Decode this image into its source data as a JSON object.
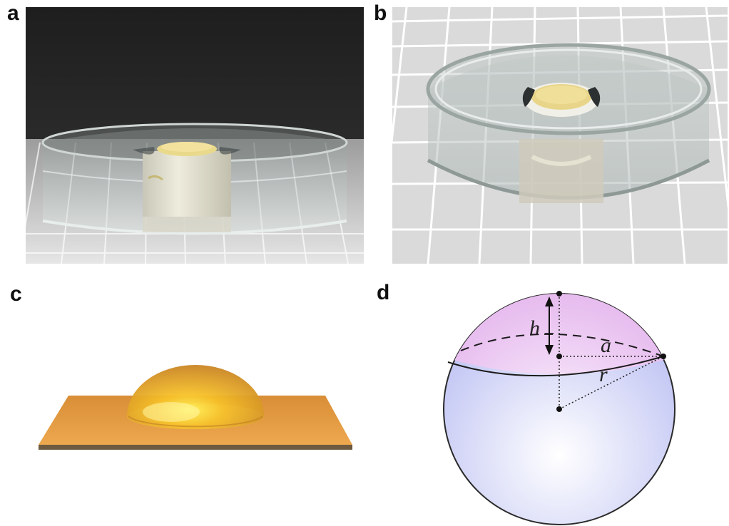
{
  "figure": {
    "panels": [
      {
        "id": "a",
        "label": "a"
      },
      {
        "id": "b",
        "label": "b"
      },
      {
        "id": "c",
        "label": "c"
      },
      {
        "id": "d",
        "label": "d"
      }
    ],
    "diagram_labels": {
      "height": "h",
      "base_radius": "a",
      "sphere_radius": "r"
    },
    "colors": {
      "cap_top": "#e6b6ee",
      "sphere_body": "#c4c8f4",
      "substrate": "#e5a047",
      "droplet": "#f3b22c"
    }
  }
}
